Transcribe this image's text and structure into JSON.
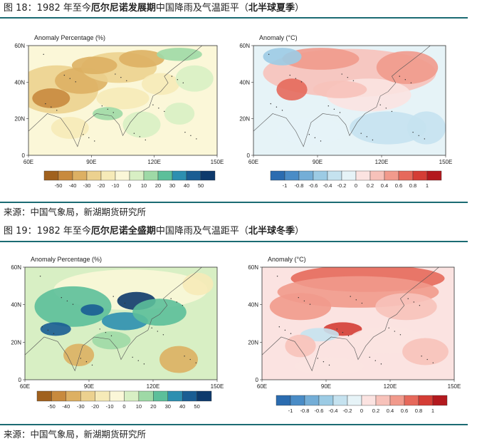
{
  "fig18": {
    "prefix": "图 18：1982 年至今",
    "bold1": "厄尔尼诺发展期",
    "middle": "中国降雨及气温距平（",
    "bold2": "北半球夏季",
    "suffix": "）",
    "source": "来源：中国气象局，新湖期货研究所"
  },
  "fig19": {
    "prefix": "图 19：1982 年至今",
    "bold1": "厄尔尼诺全盛期",
    "middle": "中国降雨及气温距平（",
    "bold2": "北半球冬季",
    "suffix": "）",
    "source": "来源：中国气象局，新湖期货研究所"
  },
  "colors": {
    "rule": "#1b6b73",
    "precip_scale": [
      "#a0611e",
      "#c88a3e",
      "#ddb063",
      "#ecd18f",
      "#f6eab8",
      "#fbf7d8",
      "#d8efc4",
      "#9ed9a6",
      "#5cbf9a",
      "#2d8fb0",
      "#1a5d93",
      "#0e3a6c"
    ],
    "temp_scale": [
      "#2b6cb0",
      "#4a8cc6",
      "#74aed7",
      "#9ccbe4",
      "#c5e2ef",
      "#e6f3f7",
      "#fbe3e1",
      "#f7c2ba",
      "#f19a8c",
      "#e6695b",
      "#d43d35",
      "#b3191e"
    ]
  },
  "chart_data": [
    {
      "type": "heatmap",
      "id": "summer-precip",
      "title": "Anomaly Percentage (%)",
      "x_ticks": [
        "60E",
        "90E",
        "120E",
        "150E"
      ],
      "y_ticks": [
        "60N",
        "40N",
        "20N",
        "0"
      ],
      "xlim": [
        60,
        150
      ],
      "ylim": [
        0,
        60
      ],
      "colorbar_ticks": [
        "-50",
        "-40",
        "-30",
        "-20",
        "-10",
        "0",
        "10",
        "20",
        "30",
        "40",
        "50"
      ]
    },
    {
      "type": "heatmap",
      "id": "summer-temp",
      "title": "Anomaly (°C)",
      "x_ticks": [
        "60E",
        "90E",
        "120E",
        "150E"
      ],
      "y_ticks": [
        "60N",
        "40N",
        "20N",
        "0"
      ],
      "xlim": [
        60,
        150
      ],
      "ylim": [
        0,
        60
      ],
      "colorbar_ticks": [
        "-1",
        "-0.8",
        "-0.6",
        "-0.4",
        "-0.2",
        "0",
        "0.2",
        "0.4",
        "0.6",
        "0.8",
        "1"
      ]
    },
    {
      "type": "heatmap",
      "id": "winter-precip",
      "title": "Anomaly Percentage (%)",
      "x_ticks": [
        "60E",
        "90E",
        "120E",
        "150E"
      ],
      "y_ticks": [
        "60N",
        "40N",
        "20N",
        "0"
      ],
      "xlim": [
        60,
        150
      ],
      "ylim": [
        0,
        60
      ],
      "colorbar_ticks": [
        "-50",
        "-40",
        "-30",
        "-20",
        "-10",
        "0",
        "10",
        "20",
        "30",
        "40",
        "50"
      ]
    },
    {
      "type": "heatmap",
      "id": "winter-temp",
      "title": "Anomaly (°C)",
      "x_ticks": [
        "60E",
        "90E",
        "120E",
        "150E"
      ],
      "y_ticks": [
        "60N",
        "40N",
        "20N",
        "0"
      ],
      "xlim": [
        60,
        150
      ],
      "ylim": [
        0,
        60
      ],
      "colorbar_ticks": [
        "-1",
        "-0.8",
        "-0.6",
        "-0.4",
        "-0.2",
        "0",
        "0.2",
        "0.4",
        "0.6",
        "0.8",
        "1"
      ]
    }
  ]
}
